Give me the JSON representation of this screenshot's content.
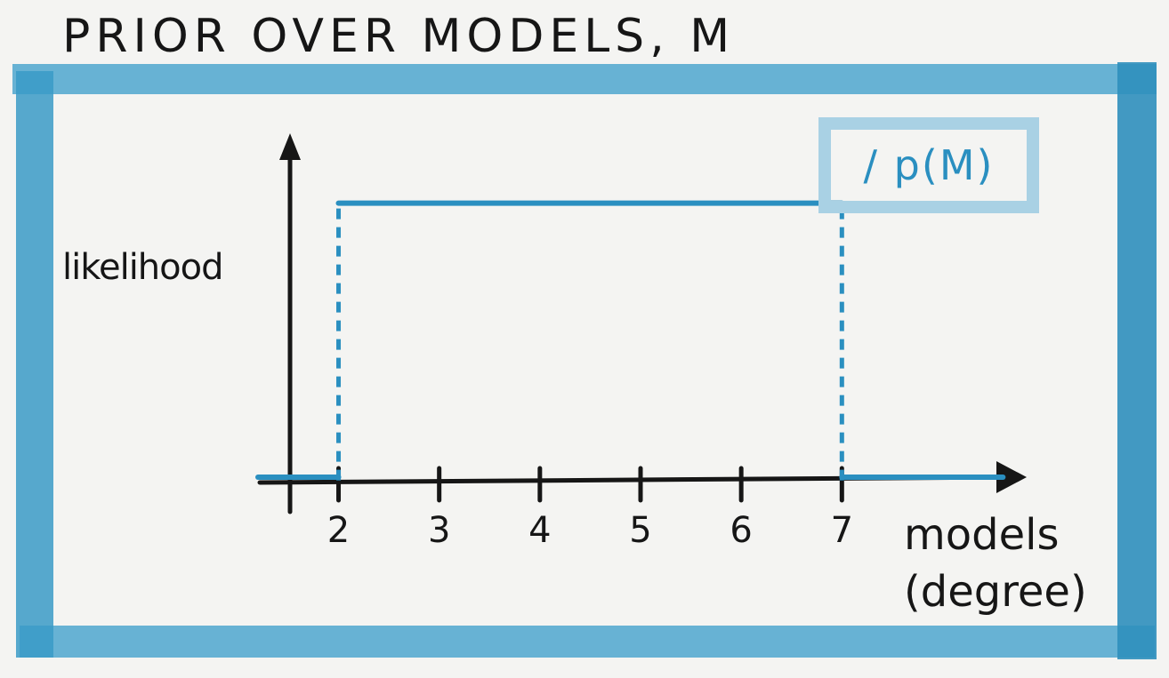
{
  "title": "PRIOR OVER MODELS, M",
  "legend": {
    "slash": "/",
    "label": "p(M)"
  },
  "colors": {
    "frame": "#3a9ac7",
    "frame_light": "#a9d1e4",
    "series": "#2a8fc0",
    "axis": "#161616"
  },
  "chart_data": {
    "type": "line",
    "title": "PRIOR OVER MODELS, M",
    "xlabel": "models\n(degree)",
    "ylabel": "likelihood",
    "x_ticks": [
      "2",
      "3",
      "4",
      "5",
      "6",
      "7"
    ],
    "x_tick_values": [
      2,
      3,
      4,
      5,
      6,
      7
    ],
    "xlim": [
      1.2,
      8.8
    ],
    "ylim": [
      0,
      1.25
    ],
    "series": [
      {
        "name": "p(M)",
        "segments": [
          {
            "x": [
              1.2,
              2
            ],
            "y": [
              0,
              0
            ]
          },
          {
            "x": [
              2,
              7
            ],
            "y": [
              1,
              1
            ]
          },
          {
            "x": [
              7,
              8.6
            ],
            "y": [
              0,
              0
            ]
          }
        ],
        "dashed_verticals": [
          2,
          7
        ]
      }
    ],
    "grid": false,
    "legend_position": "top-right"
  }
}
